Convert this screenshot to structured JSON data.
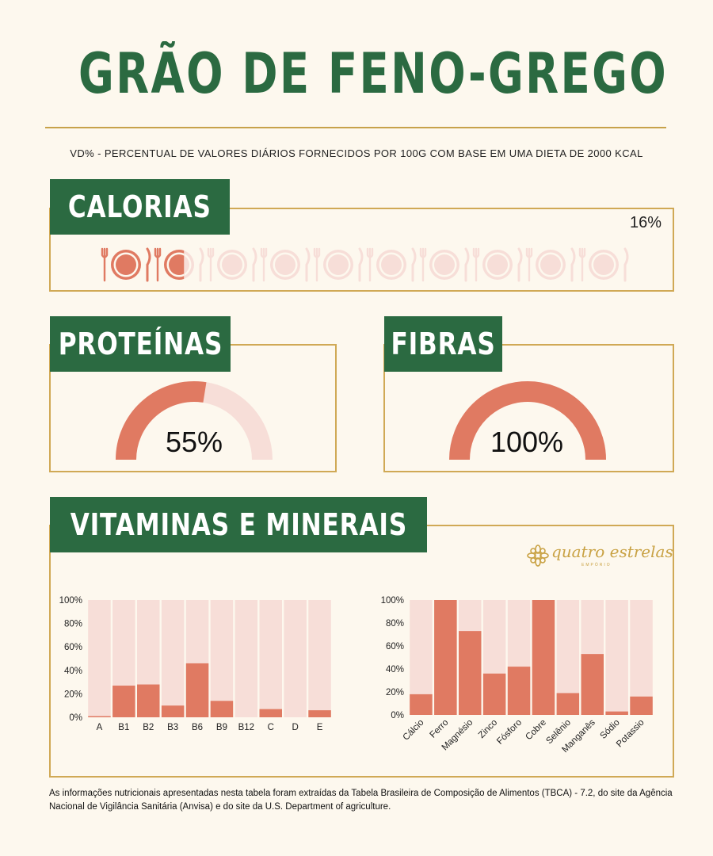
{
  "title": "GRÃO DE FENO-GREGO",
  "subtitle": "VD% - PERCENTUAL DE VALORES DIÁRIOS FORNECIDOS POR 100G COM BASE EM UMA DIETA DE 2000 KCAL",
  "colors": {
    "green": "#2b6a41",
    "gold": "#d0a955",
    "bar": "#e07a62",
    "bar_bg": "#f7ded8",
    "background": "#fdf8ee"
  },
  "calorias": {
    "label": "CALORIAS",
    "value_text": "16%",
    "value": 16,
    "icon_total": 10,
    "icon_filled": 1.6,
    "icon": "plate-fork-knife-icon"
  },
  "proteinas": {
    "label": "PROTEÍNAS",
    "value_text": "55%",
    "value": 55
  },
  "fibras": {
    "label": "FIBRAS",
    "value_text": "100%",
    "value": 100
  },
  "vitaminas": {
    "label": "VITAMINAS E MINERAIS"
  },
  "logo": {
    "text": "quatro estrelas",
    "sub": "EMPÓRIO",
    "icon": "ornament-flower-icon"
  },
  "footnote": "As informações nutricionais apresentadas nesta tabela foram extraídas da Tabela Brasileira de Composição de Alimentos (TBCA) - 7.2, do site da Agência Nacional de Vigilância Sanitária (Anvisa) e do site da U.S. Department of agriculture.",
  "chart_data": [
    {
      "type": "bar",
      "categories": [
        "A",
        "B1",
        "B2",
        "B3",
        "B6",
        "B9",
        "B12",
        "C",
        "D",
        "E"
      ],
      "values": [
        1,
        27,
        28,
        10,
        46,
        14,
        0,
        7,
        0,
        6
      ],
      "yticks": [
        "0%",
        "20%",
        "40%",
        "60%",
        "80%",
        "100%"
      ],
      "ylim": [
        0,
        100
      ],
      "grid": false
    },
    {
      "type": "bar",
      "categories": [
        "Cálcio",
        "Ferro",
        "Magnésio",
        "Zinco",
        "Fósforo",
        "Cobre",
        "Selênio",
        "Manganês",
        "Sódio",
        "Potassio"
      ],
      "values": [
        18,
        100,
        73,
        36,
        42,
        100,
        19,
        53,
        3,
        16
      ],
      "yticks": [
        "0%",
        "20%",
        "40%",
        "60%",
        "80%",
        "100%"
      ],
      "ylim": [
        0,
        100
      ],
      "grid": false
    }
  ]
}
